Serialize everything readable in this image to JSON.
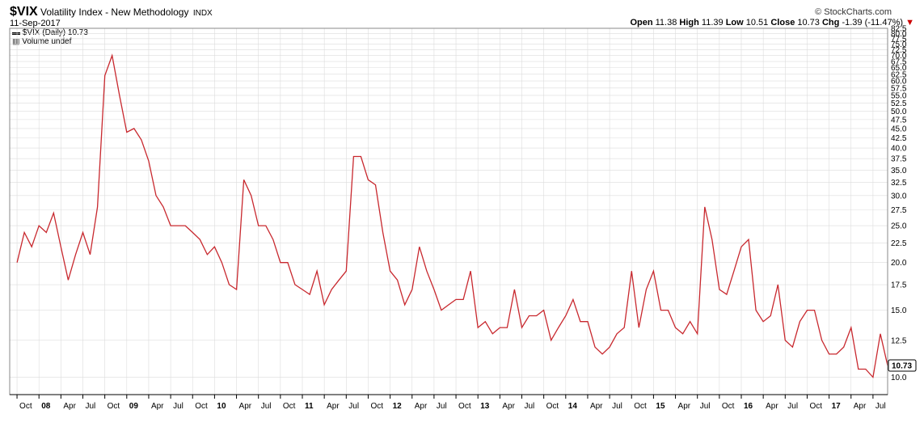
{
  "header": {
    "symbol": "$VIX",
    "name": "Volatility Index - New Methodology",
    "exchange": "INDX",
    "date": "11-Sep-2017",
    "brand": "© StockCharts.com"
  },
  "quote": {
    "open_label": "Open",
    "open": "11.38",
    "high_label": "High",
    "high": "11.39",
    "low_label": "Low",
    "low": "10.51",
    "close_label": "Close",
    "close": "10.73",
    "chg_label": "Chg",
    "chg": "-1.39 (-11.47%)",
    "chg_arrow": "▼"
  },
  "legend": {
    "series_label": "$VIX (Daily) 10.73",
    "volume_label": "Volume undef"
  },
  "last_value_tag": "10.73",
  "colors": {
    "series": "#c8282e",
    "up_segment": "#000000",
    "grid": "#dcdcdc"
  },
  "chart_data": {
    "type": "line",
    "series": [
      {
        "name": "$VIX (Daily)",
        "points": [
          [
            "2007-10",
            20.0
          ],
          [
            "2007-11",
            24.0
          ],
          [
            "2007-12",
            22.0
          ],
          [
            "2008-01",
            25.0
          ],
          [
            "2008-02",
            24.0
          ],
          [
            "2008-03",
            27.0
          ],
          [
            "2008-04",
            22.0
          ],
          [
            "2008-05",
            18.0
          ],
          [
            "2008-06",
            21.0
          ],
          [
            "2008-07",
            24.0
          ],
          [
            "2008-08",
            21.0
          ],
          [
            "2008-09",
            28.0
          ],
          [
            "2008-10",
            62.0
          ],
          [
            "2008-11",
            70.0
          ],
          [
            "2008-12",
            55.0
          ],
          [
            "2009-01",
            44.0
          ],
          [
            "2009-02",
            45.0
          ],
          [
            "2009-03",
            42.0
          ],
          [
            "2009-04",
            37.0
          ],
          [
            "2009-05",
            30.0
          ],
          [
            "2009-06",
            28.0
          ],
          [
            "2009-07",
            25.0
          ],
          [
            "2009-08",
            25.0
          ],
          [
            "2009-09",
            25.0
          ],
          [
            "2009-10",
            24.0
          ],
          [
            "2009-11",
            23.0
          ],
          [
            "2009-12",
            21.0
          ],
          [
            "2010-01",
            22.0
          ],
          [
            "2010-02",
            20.0
          ],
          [
            "2010-03",
            17.5
          ],
          [
            "2010-04",
            17.0
          ],
          [
            "2010-05",
            33.0
          ],
          [
            "2010-06",
            30.0
          ],
          [
            "2010-07",
            25.0
          ],
          [
            "2010-08",
            25.0
          ],
          [
            "2010-09",
            23.0
          ],
          [
            "2010-10",
            20.0
          ],
          [
            "2010-11",
            20.0
          ],
          [
            "2010-12",
            17.5
          ],
          [
            "2011-01",
            17.0
          ],
          [
            "2011-02",
            16.5
          ],
          [
            "2011-03",
            19.0
          ],
          [
            "2011-04",
            15.5
          ],
          [
            "2011-05",
            17.0
          ],
          [
            "2011-06",
            18.0
          ],
          [
            "2011-07",
            19.0
          ],
          [
            "2011-08",
            38.0
          ],
          [
            "2011-09",
            38.0
          ],
          [
            "2011-10",
            33.0
          ],
          [
            "2011-11",
            32.0
          ],
          [
            "2011-12",
            24.0
          ],
          [
            "2012-01",
            19.0
          ],
          [
            "2012-02",
            18.0
          ],
          [
            "2012-03",
            15.5
          ],
          [
            "2012-04",
            17.0
          ],
          [
            "2012-05",
            22.0
          ],
          [
            "2012-06",
            19.0
          ],
          [
            "2012-07",
            17.0
          ],
          [
            "2012-08",
            15.0
          ],
          [
            "2012-09",
            15.5
          ],
          [
            "2012-10",
            16.0
          ],
          [
            "2012-11",
            16.0
          ],
          [
            "2012-12",
            19.0
          ],
          [
            "2013-01",
            13.5
          ],
          [
            "2013-02",
            14.0
          ],
          [
            "2013-03",
            13.0
          ],
          [
            "2013-04",
            13.5
          ],
          [
            "2013-05",
            13.5
          ],
          [
            "2013-06",
            17.0
          ],
          [
            "2013-07",
            13.5
          ],
          [
            "2013-08",
            14.5
          ],
          [
            "2013-09",
            14.5
          ],
          [
            "2013-10",
            15.0
          ],
          [
            "2013-11",
            12.5
          ],
          [
            "2013-12",
            13.5
          ],
          [
            "2014-01",
            14.5
          ],
          [
            "2014-02",
            16.0
          ],
          [
            "2014-03",
            14.0
          ],
          [
            "2014-04",
            14.0
          ],
          [
            "2014-05",
            12.0
          ],
          [
            "2014-06",
            11.5
          ],
          [
            "2014-07",
            12.0
          ],
          [
            "2014-08",
            13.0
          ],
          [
            "2014-09",
            13.5
          ],
          [
            "2014-10",
            19.0
          ],
          [
            "2014-11",
            13.5
          ],
          [
            "2014-12",
            17.0
          ],
          [
            "2015-01",
            19.0
          ],
          [
            "2015-02",
            15.0
          ],
          [
            "2015-03",
            15.0
          ],
          [
            "2015-04",
            13.5
          ],
          [
            "2015-05",
            13.0
          ],
          [
            "2015-06",
            14.0
          ],
          [
            "2015-07",
            13.0
          ],
          [
            "2015-08",
            28.0
          ],
          [
            "2015-09",
            23.0
          ],
          [
            "2015-10",
            17.0
          ],
          [
            "2015-11",
            16.5
          ],
          [
            "2015-12",
            19.0
          ],
          [
            "2016-01",
            22.0
          ],
          [
            "2016-02",
            23.0
          ],
          [
            "2016-03",
            15.0
          ],
          [
            "2016-04",
            14.0
          ],
          [
            "2016-05",
            14.5
          ],
          [
            "2016-06",
            17.5
          ],
          [
            "2016-07",
            12.5
          ],
          [
            "2016-08",
            12.0
          ],
          [
            "2016-09",
            14.0
          ],
          [
            "2016-10",
            15.0
          ],
          [
            "2016-11",
            15.0
          ],
          [
            "2016-12",
            12.5
          ],
          [
            "2017-01",
            11.5
          ],
          [
            "2017-02",
            11.5
          ],
          [
            "2017-03",
            12.0
          ],
          [
            "2017-04",
            13.5
          ],
          [
            "2017-05",
            10.5
          ],
          [
            "2017-06",
            10.5
          ],
          [
            "2017-07",
            10.0
          ],
          [
            "2017-08",
            13.0
          ],
          [
            "2017-09",
            10.73
          ]
        ]
      }
    ],
    "y_scale": "log",
    "ylim": [
      9.0,
      82.5
    ],
    "y_ticks": [
      10.0,
      12.5,
      15.0,
      17.5,
      20.0,
      22.5,
      25.0,
      27.5,
      30.0,
      32.5,
      35.0,
      37.5,
      40.0,
      42.5,
      45.0,
      47.5,
      50.0,
      52.5,
      55.0,
      57.5,
      60.0,
      62.5,
      65.0,
      67.5,
      70.0,
      72.5,
      75.0,
      77.5,
      80.0,
      82.5
    ],
    "x_ticks": [
      {
        "date": "2007-10",
        "label": "Oct"
      },
      {
        "date": "2008-01",
        "label": "08"
      },
      {
        "date": "2008-04",
        "label": "Apr"
      },
      {
        "date": "2008-07",
        "label": "Jul"
      },
      {
        "date": "2008-10",
        "label": "Oct"
      },
      {
        "date": "2009-01",
        "label": "09"
      },
      {
        "date": "2009-04",
        "label": "Apr"
      },
      {
        "date": "2009-07",
        "label": "Jul"
      },
      {
        "date": "2009-10",
        "label": "Oct"
      },
      {
        "date": "2010-01",
        "label": "10"
      },
      {
        "date": "2010-04",
        "label": "Apr"
      },
      {
        "date": "2010-07",
        "label": "Jul"
      },
      {
        "date": "2010-10",
        "label": "Oct"
      },
      {
        "date": "2011-01",
        "label": "11"
      },
      {
        "date": "2011-04",
        "label": "Apr"
      },
      {
        "date": "2011-07",
        "label": "Jul"
      },
      {
        "date": "2011-10",
        "label": "Oct"
      },
      {
        "date": "2012-01",
        "label": "12"
      },
      {
        "date": "2012-04",
        "label": "Apr"
      },
      {
        "date": "2012-07",
        "label": "Jul"
      },
      {
        "date": "2012-10",
        "label": "Oct"
      },
      {
        "date": "2013-01",
        "label": "13"
      },
      {
        "date": "2013-04",
        "label": "Apr"
      },
      {
        "date": "2013-07",
        "label": "Jul"
      },
      {
        "date": "2013-10",
        "label": "Oct"
      },
      {
        "date": "2014-01",
        "label": "14"
      },
      {
        "date": "2014-04",
        "label": "Apr"
      },
      {
        "date": "2014-07",
        "label": "Jul"
      },
      {
        "date": "2014-10",
        "label": "Oct"
      },
      {
        "date": "2015-01",
        "label": "15"
      },
      {
        "date": "2015-04",
        "label": "Apr"
      },
      {
        "date": "2015-07",
        "label": "Jul"
      },
      {
        "date": "2015-10",
        "label": "Oct"
      },
      {
        "date": "2016-01",
        "label": "16"
      },
      {
        "date": "2016-04",
        "label": "Apr"
      },
      {
        "date": "2016-07",
        "label": "Jul"
      },
      {
        "date": "2016-10",
        "label": "Oct"
      },
      {
        "date": "2017-01",
        "label": "17"
      },
      {
        "date": "2017-04",
        "label": "Apr"
      },
      {
        "date": "2017-07",
        "label": "Jul"
      }
    ],
    "x_range": [
      "2007-09",
      "2017-09"
    ],
    "grid": true,
    "legend_position": "top-left"
  }
}
